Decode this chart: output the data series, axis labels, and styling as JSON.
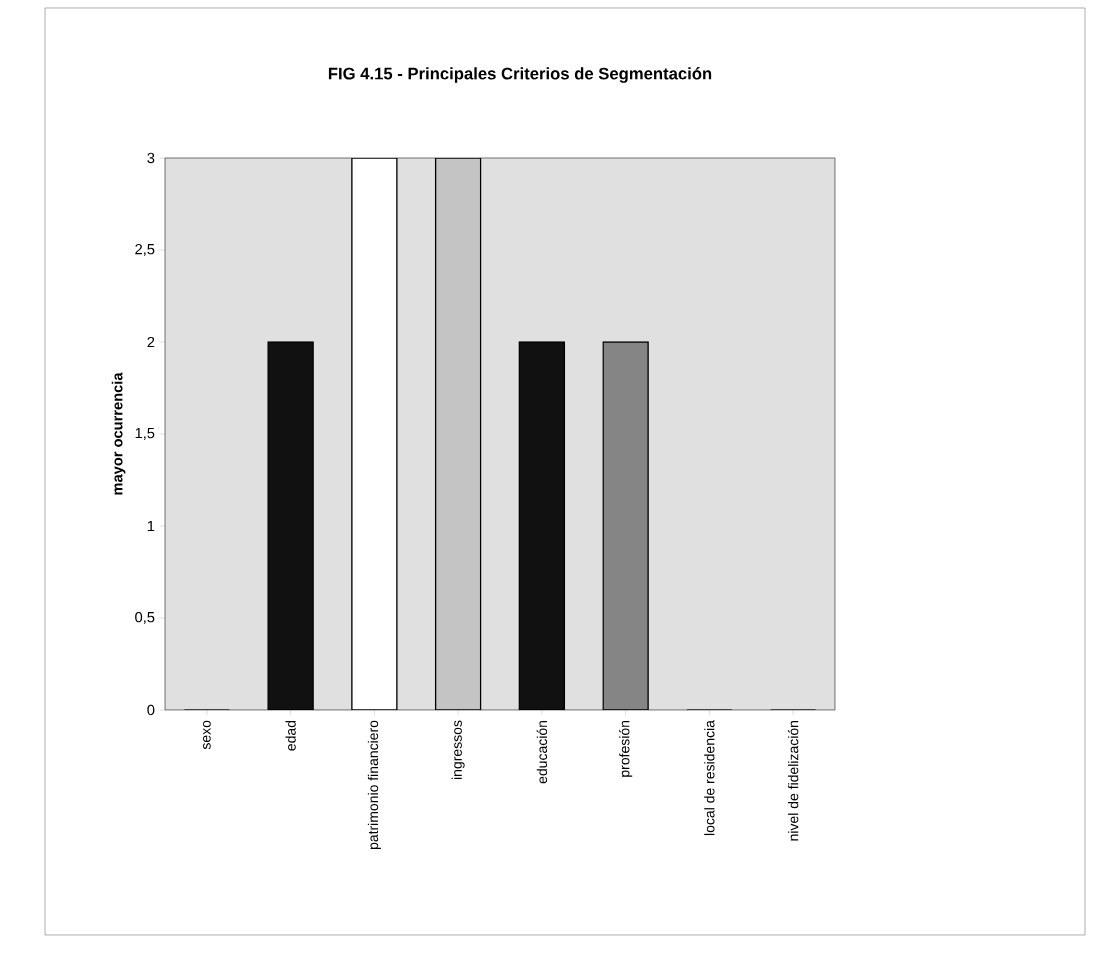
{
  "chart_data": {
    "type": "bar",
    "title": "FIG 4.15 - Principales Criterios de Segmentación",
    "ylabel": "mayor ocurrencia",
    "categories": [
      "sexo",
      "edad",
      "patrimonio financiero",
      "ingressos",
      "educación",
      "profesión",
      "local de residencia",
      "nivel de fidelización"
    ],
    "values": [
      0,
      2,
      3,
      3,
      2,
      2,
      0,
      0
    ],
    "colors": [
      "#111111",
      "#111111",
      "#ffffff",
      "#c4c4c4",
      "#111111",
      "#858585",
      "#111111",
      "#111111"
    ],
    "ylim": [
      0,
      3
    ],
    "yticks": [
      0,
      {
        "value": 0.5,
        "label": "0,5"
      },
      1,
      {
        "value": 1.5,
        "label": "1,5"
      },
      2,
      {
        "value": 2.5,
        "label": "2,5"
      },
      3
    ]
  }
}
